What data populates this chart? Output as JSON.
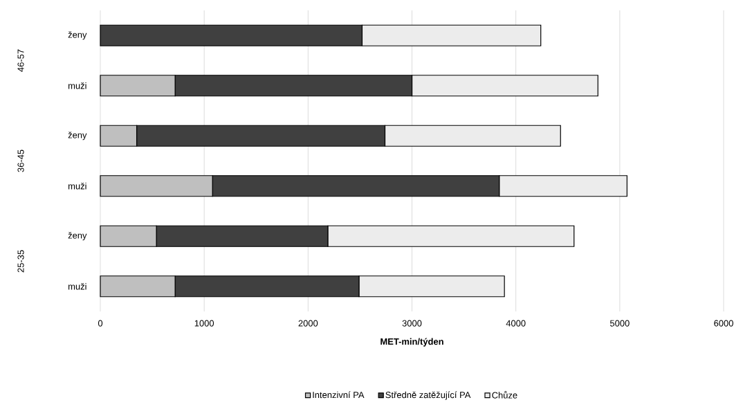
{
  "chart_data": {
    "type": "bar",
    "orientation": "horizontal",
    "stacked": true,
    "xlabel": "MET-min/týden",
    "categories": [
      "ženy",
      "muži",
      "ženy",
      "muži",
      "ženy",
      "muži"
    ],
    "annotations": [
      "46-57",
      "36-45",
      "25-35"
    ],
    "series": [
      {
        "name": "Intenzivní PA",
        "color": "#bfbfbf",
        "values": [
          0,
          720,
          350,
          1080,
          540,
          720
        ]
      },
      {
        "name": "Středně zatěžující PA",
        "color": "#404040",
        "values": [
          2520,
          2280,
          2390,
          2760,
          1650,
          1770
        ]
      },
      {
        "name": "Chůze",
        "color": "#ececec",
        "values": [
          1720,
          1790,
          1690,
          1230,
          2370,
          1400
        ]
      }
    ],
    "xlim": [
      0,
      6000
    ],
    "xticks": [
      0,
      1000,
      2000,
      3000,
      4000,
      5000,
      6000
    ],
    "grid": "x",
    "legend": "bottom"
  }
}
